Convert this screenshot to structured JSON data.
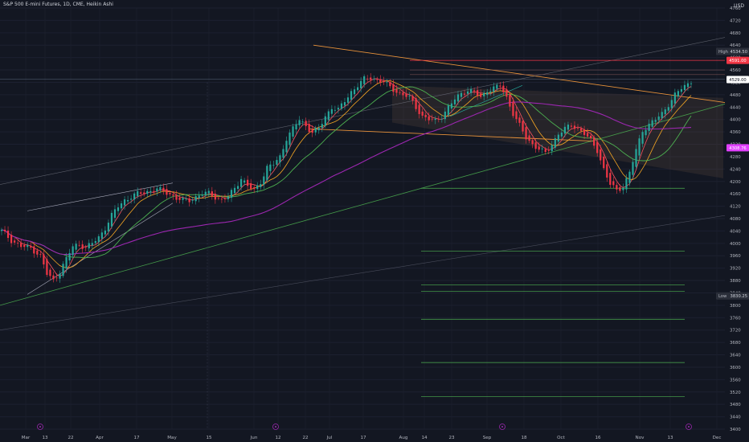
{
  "chart_data": {
    "type": "candlestick",
    "title": "S&P 500 E-mini Futures, 1D, CME, Heikin Ashi",
    "currency": "USD",
    "ylim": [
      3400,
      4760
    ],
    "y_ticks": [
      4760,
      4720,
      4680,
      4640,
      4600,
      4560,
      4520,
      4480,
      4440,
      4400,
      4360,
      4320,
      4280,
      4240,
      4200,
      4160,
      4120,
      4080,
      4040,
      4000,
      3960,
      3920,
      3880,
      3840,
      3800,
      3760,
      3720,
      3680,
      3640,
      3600,
      3560,
      3520,
      3480,
      3440,
      3400
    ],
    "x_ticks": [
      "Mar",
      "13",
      "22",
      "Apr",
      "17",
      "May",
      "15",
      "Jun",
      "12",
      "22",
      "Jul",
      "17",
      "Aug",
      "14",
      "23",
      "Sep",
      "18",
      "Oct",
      "16",
      "Nov",
      "13",
      "Dec"
    ],
    "high_label": "High",
    "high_value": "4534.50",
    "low_label": "Low",
    "low_value": "3830.25",
    "price_tags": [
      {
        "value": "4591.00",
        "color": "#f23645"
      },
      {
        "value": "4529.00",
        "color": "#f23645"
      },
      {
        "value": "4308.76",
        "color": "#e040fb"
      }
    ],
    "series": [
      {
        "name": "price",
        "key": [
          [
            0,
            4040
          ],
          [
            3,
            4010
          ],
          [
            6,
            3990
          ],
          [
            9,
            3985
          ],
          [
            12,
            3960
          ],
          [
            14,
            3900
          ],
          [
            16,
            3880
          ],
          [
            18,
            3910
          ],
          [
            20,
            3950
          ],
          [
            22,
            3990
          ],
          [
            24,
            3998
          ],
          [
            26,
            3985
          ],
          [
            28,
            4000
          ],
          [
            30,
            4020
          ],
          [
            32,
            4050
          ],
          [
            34,
            4090
          ],
          [
            36,
            4120
          ],
          [
            38,
            4140
          ],
          [
            40,
            4150
          ],
          [
            42,
            4160
          ],
          [
            44,
            4165
          ],
          [
            46,
            4170
          ],
          [
            48,
            4175
          ],
          [
            50,
            4168
          ],
          [
            52,
            4160
          ],
          [
            54,
            4145
          ],
          [
            56,
            4138
          ],
          [
            58,
            4140
          ],
          [
            60,
            4150
          ],
          [
            62,
            4160
          ],
          [
            64,
            4162
          ],
          [
            66,
            4150
          ],
          [
            68,
            4140
          ],
          [
            70,
            4150
          ],
          [
            72,
            4180
          ],
          [
            74,
            4210
          ],
          [
            76,
            4185
          ],
          [
            78,
            4170
          ],
          [
            80,
            4200
          ],
          [
            82,
            4245
          ],
          [
            84,
            4255
          ],
          [
            86,
            4280
          ],
          [
            88,
            4340
          ],
          [
            90,
            4370
          ],
          [
            92,
            4400
          ],
          [
            94,
            4380
          ],
          [
            96,
            4358
          ],
          [
            98,
            4370
          ],
          [
            100,
            4410
          ],
          [
            102,
            4440
          ],
          [
            104,
            4430
          ],
          [
            106,
            4460
          ],
          [
            108,
            4490
          ],
          [
            110,
            4510
          ],
          [
            112,
            4530
          ],
          [
            114,
            4535
          ],
          [
            116,
            4528
          ],
          [
            118,
            4520
          ],
          [
            120,
            4505
          ],
          [
            122,
            4490
          ],
          [
            124,
            4480
          ],
          [
            126,
            4470
          ],
          [
            128,
            4440
          ],
          [
            130,
            4410
          ],
          [
            132,
            4400
          ],
          [
            134,
            4395
          ],
          [
            136,
            4412
          ],
          [
            138,
            4440
          ],
          [
            140,
            4465
          ],
          [
            142,
            4485
          ],
          [
            144,
            4495
          ],
          [
            146,
            4488
          ],
          [
            148,
            4470
          ],
          [
            150,
            4495
          ],
          [
            152,
            4502
          ],
          [
            154,
            4508
          ],
          [
            156,
            4470
          ],
          [
            158,
            4420
          ],
          [
            160,
            4380
          ],
          [
            162,
            4340
          ],
          [
            164,
            4320
          ],
          [
            166,
            4305
          ],
          [
            168,
            4290
          ],
          [
            170,
            4320
          ],
          [
            172,
            4355
          ],
          [
            174,
            4370
          ],
          [
            176,
            4380
          ],
          [
            178,
            4372
          ],
          [
            180,
            4355
          ],
          [
            182,
            4330
          ],
          [
            184,
            4300
          ],
          [
            186,
            4240
          ],
          [
            188,
            4190
          ],
          [
            190,
            4170
          ],
          [
            192,
            4185
          ],
          [
            194,
            4230
          ],
          [
            196,
            4300
          ],
          [
            198,
            4365
          ],
          [
            200,
            4385
          ],
          [
            202,
            4400
          ],
          [
            204,
            4418
          ],
          [
            206,
            4450
          ],
          [
            208,
            4480
          ],
          [
            210,
            4500
          ],
          [
            212,
            4515
          ],
          [
            213,
            4525
          ]
        ]
      }
    ],
    "moving_averages": [
      {
        "name": "ma-short",
        "color": "#f7525f"
      },
      {
        "name": "ma-mid",
        "color": "#f5a623"
      },
      {
        "name": "ma-long",
        "color": "#4caf50"
      },
      {
        "name": "ma-purple",
        "color": "#9c27b0"
      }
    ]
  }
}
